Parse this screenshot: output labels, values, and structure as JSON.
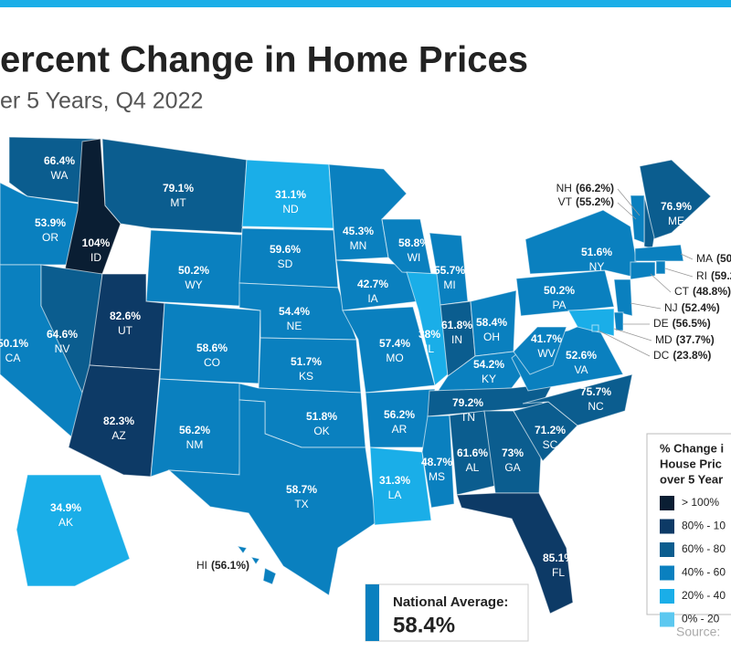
{
  "header": {
    "title": "ercent Change in Home Prices",
    "subtitle": "er 5 Years, Q4 2022"
  },
  "states": [
    {
      "abbr": "WA",
      "value": "66.4%",
      "color": "#0b5d8f"
    },
    {
      "abbr": "OR",
      "value": "53.9%",
      "color": "#0a80bf"
    },
    {
      "abbr": "CA",
      "value": "50.1%",
      "color": "#0a80bf"
    },
    {
      "abbr": "ID",
      "value": "104%",
      "color": "#0a1e33"
    },
    {
      "abbr": "NV",
      "value": "64.6%",
      "color": "#0b5d8f"
    },
    {
      "abbr": "MT",
      "value": "79.1%",
      "color": "#0b5d8f"
    },
    {
      "abbr": "WY",
      "value": "50.2%",
      "color": "#0a80bf"
    },
    {
      "abbr": "UT",
      "value": "82.6%",
      "color": "#0d3a66"
    },
    {
      "abbr": "AZ",
      "value": "82.3%",
      "color": "#0d3a66"
    },
    {
      "abbr": "CO",
      "value": "58.6%",
      "color": "#0a80bf"
    },
    {
      "abbr": "NM",
      "value": "56.2%",
      "color": "#0a80bf"
    },
    {
      "abbr": "ND",
      "value": "31.1%",
      "color": "#1aaee8"
    },
    {
      "abbr": "SD",
      "value": "59.6%",
      "color": "#0a80bf"
    },
    {
      "abbr": "NE",
      "value": "54.4%",
      "color": "#0a80bf"
    },
    {
      "abbr": "KS",
      "value": "51.7%",
      "color": "#0a80bf"
    },
    {
      "abbr": "OK",
      "value": "51.8%",
      "color": "#0a80bf"
    },
    {
      "abbr": "TX",
      "value": "58.7%",
      "color": "#0a80bf"
    },
    {
      "abbr": "MN",
      "value": "45.3%",
      "color": "#0a80bf"
    },
    {
      "abbr": "IA",
      "value": "42.7%",
      "color": "#0a80bf"
    },
    {
      "abbr": "MO",
      "value": "57.4%",
      "color": "#0a80bf"
    },
    {
      "abbr": "AR",
      "value": "56.2%",
      "color": "#0a80bf"
    },
    {
      "abbr": "LA",
      "value": "31.3%",
      "color": "#1aaee8"
    },
    {
      "abbr": "WI",
      "value": "58.8%",
      "color": "#0a80bf"
    },
    {
      "abbr": "IL",
      "value": "38%",
      "color": "#1aaee8"
    },
    {
      "abbr": "MI",
      "value": "55.7%",
      "color": "#0a80bf"
    },
    {
      "abbr": "IN",
      "value": "61.8%",
      "color": "#0b5d8f"
    },
    {
      "abbr": "OH",
      "value": "58.4%",
      "color": "#0a80bf"
    },
    {
      "abbr": "KY",
      "value": "54.2%",
      "color": "#0a80bf"
    },
    {
      "abbr": "TN",
      "value": "79.2%",
      "color": "#0b5d8f"
    },
    {
      "abbr": "MS",
      "value": "48.7%",
      "color": "#0a80bf"
    },
    {
      "abbr": "AL",
      "value": "61.6%",
      "color": "#0b5d8f"
    },
    {
      "abbr": "GA",
      "value": "73%",
      "color": "#0b5d8f"
    },
    {
      "abbr": "FL",
      "value": "85.1%",
      "color": "#0d3a66"
    },
    {
      "abbr": "SC",
      "value": "71.2%",
      "color": "#0b5d8f"
    },
    {
      "abbr": "NC",
      "value": "75.7%",
      "color": "#0b5d8f"
    },
    {
      "abbr": "VA",
      "value": "52.6%",
      "color": "#0a80bf"
    },
    {
      "abbr": "WV",
      "value": "41.7%",
      "color": "#0a80bf"
    },
    {
      "abbr": "PA",
      "value": "50.2%",
      "color": "#0a80bf"
    },
    {
      "abbr": "NY",
      "value": "51.6%",
      "color": "#0a80bf"
    },
    {
      "abbr": "ME",
      "value": "76.9%",
      "color": "#0b5d8f"
    },
    {
      "abbr": "AK",
      "value": "34.9%",
      "color": "#1aaee8"
    }
  ],
  "callout_states": [
    {
      "abbr": "NH",
      "value": "(66.2%)",
      "color": "#0b5d8f"
    },
    {
      "abbr": "VT",
      "value": "(55.2%)",
      "color": "#0a80bf"
    },
    {
      "abbr": "MA",
      "value": "(50",
      "color": "#0a80bf"
    },
    {
      "abbr": "RI",
      "value": "(59.2",
      "color": "#0a80bf"
    },
    {
      "abbr": "CT",
      "value": "(48.8%)",
      "color": "#0a80bf"
    },
    {
      "abbr": "NJ",
      "value": "(52.4%)",
      "color": "#0a80bf"
    },
    {
      "abbr": "DE",
      "value": "(56.5%)",
      "color": "#0a80bf"
    },
    {
      "abbr": "MD",
      "value": "(37.7%)",
      "color": "#1aaee8"
    },
    {
      "abbr": "DC",
      "value": "(23.8%)",
      "color": "#1aaee8"
    },
    {
      "abbr": "HI",
      "value": "(56.1%)",
      "color": "#0a80bf"
    }
  ],
  "legend": {
    "title": [
      "% Change i",
      "House Pric",
      "over 5 Year"
    ],
    "items": [
      {
        "label": "> 100%",
        "color": "#0a1e33"
      },
      {
        "label": "80% - 10",
        "color": "#0d3a66"
      },
      {
        "label": "60% - 80",
        "color": "#0b5d8f"
      },
      {
        "label": "40% - 60",
        "color": "#0a80bf"
      },
      {
        "label": "20% - 40",
        "color": "#1aaee8"
      },
      {
        "label": "0% - 20",
        "color": "#5cc8f0"
      }
    ]
  },
  "national_average": {
    "label": "National Average:",
    "value": "58.4%"
  },
  "source": "Source:"
}
